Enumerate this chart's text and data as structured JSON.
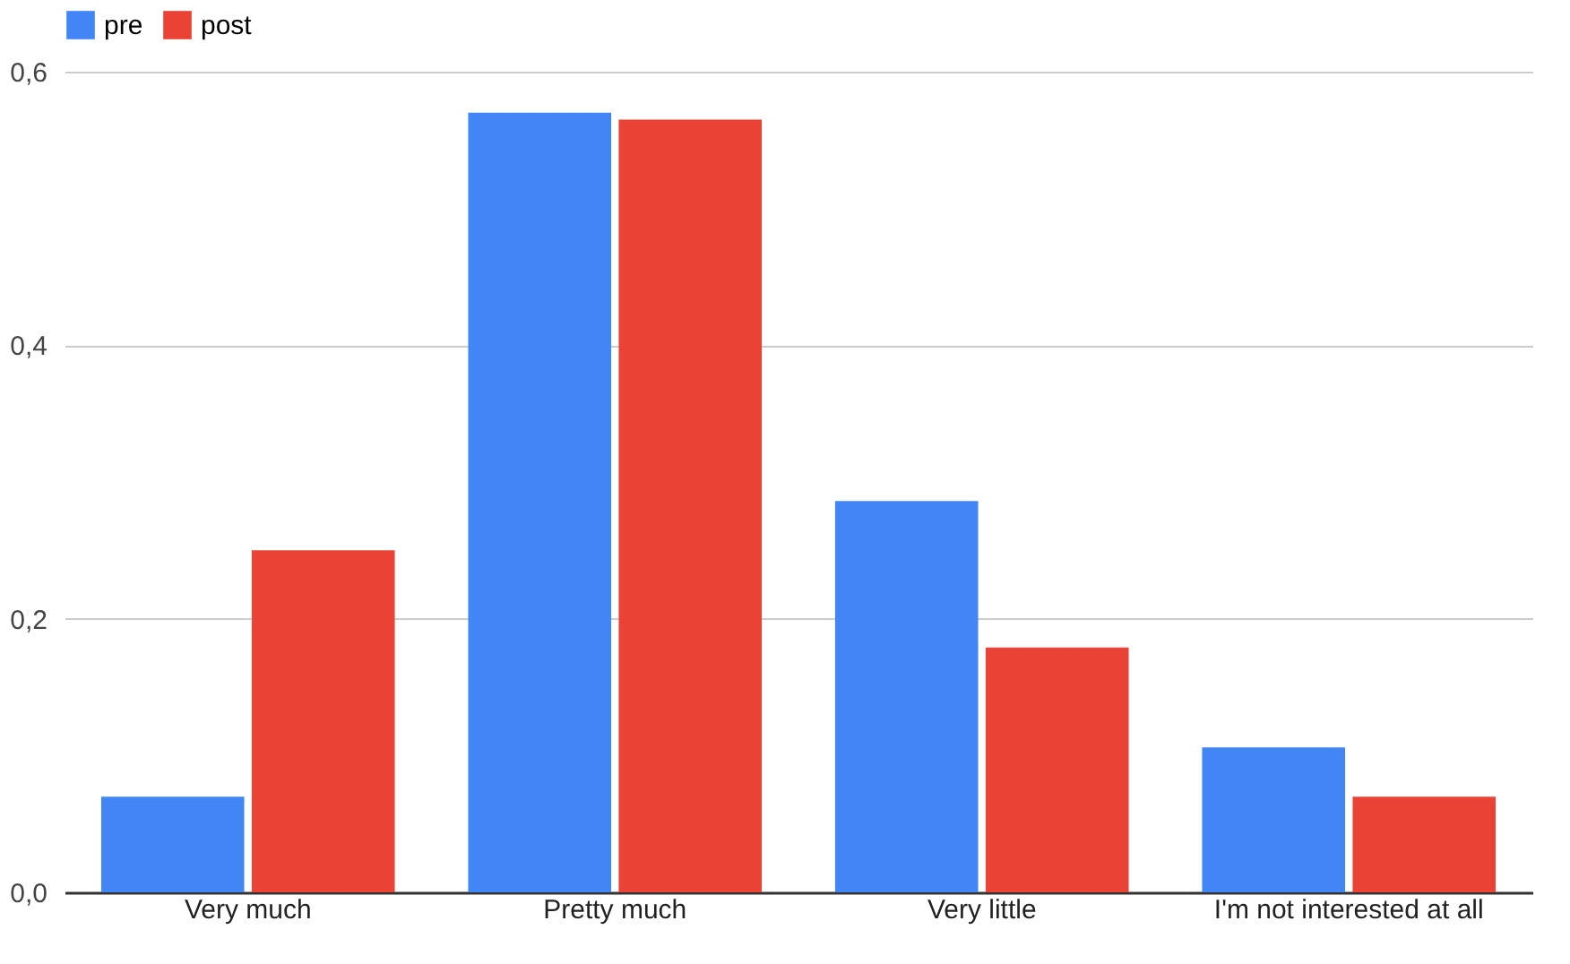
{
  "chart_data": {
    "type": "bar",
    "categories": [
      "Very much",
      "Pretty much",
      "Very little",
      "I'm not interested at all"
    ],
    "series": [
      {
        "name": "pre",
        "color": "#4285f4",
        "values": [
          0.07,
          0.57,
          0.286,
          0.106
        ]
      },
      {
        "name": "post",
        "color": "#ea4335",
        "values": [
          0.25,
          0.565,
          0.179,
          0.07
        ]
      }
    ],
    "ylim": [
      0,
      0.6
    ],
    "yticks": [
      {
        "value": 0,
        "label": "0,0"
      },
      {
        "value": 0.2,
        "label": "0,2"
      },
      {
        "value": 0.4,
        "label": "0,4"
      },
      {
        "value": 0.6,
        "label": "0,6"
      }
    ],
    "grid": "y",
    "legend": "top"
  }
}
